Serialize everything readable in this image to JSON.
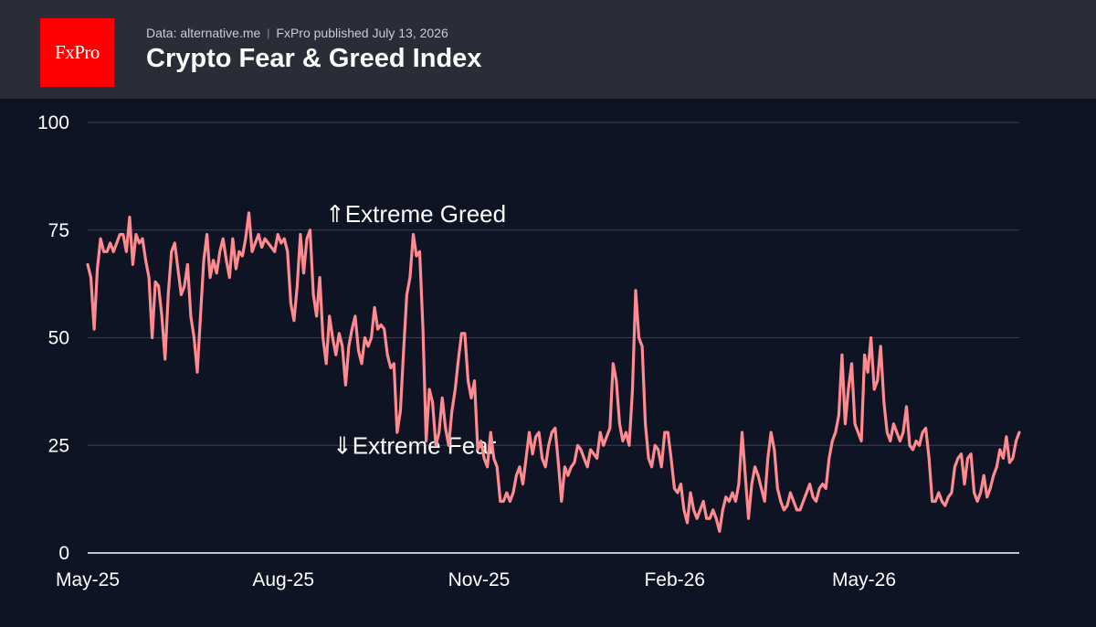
{
  "header": {
    "logo_text": "FxPro",
    "source": "Data: alternative.me",
    "publisher": "FxPro published July 13, 2026",
    "title": "Crypto Fear & Greed Index"
  },
  "colors": {
    "background": "#0e1424",
    "header_background": "#2a2d38",
    "logo_red": "#ff0000",
    "line": "#ff8a8f",
    "grid": "#3a3f4d"
  },
  "chart_data": {
    "type": "line",
    "title": "Crypto Fear & Greed Index",
    "xlabel": "",
    "ylabel": "",
    "ylim": [
      0,
      100
    ],
    "yticks": [
      0,
      25,
      50,
      75,
      100
    ],
    "xticks": [
      "May-25",
      "Aug-25",
      "Nov-25",
      "Feb-26",
      "May-26"
    ],
    "grid": true,
    "annotations": [
      {
        "text": "⇑Extreme Greed",
        "y": 75
      },
      {
        "text": "⇓Extreme Fear",
        "y": 25
      }
    ],
    "series": [
      {
        "x_start": "2025-05-01",
        "x_end": "2026-07-13",
        "values": [
          67,
          64,
          52,
          66,
          73,
          70,
          70,
          72,
          70,
          72,
          74,
          74,
          70,
          78,
          67,
          74,
          72,
          73,
          68,
          64,
          50,
          63,
          62,
          55,
          45,
          60,
          70,
          72,
          66,
          60,
          62,
          67,
          55,
          50,
          42,
          55,
          68,
          74,
          64,
          68,
          65,
          70,
          73,
          68,
          64,
          73,
          66,
          70,
          69,
          73,
          79,
          70,
          72,
          74,
          71,
          73,
          72,
          71,
          70,
          74,
          72,
          73,
          70,
          58,
          54,
          62,
          74,
          65,
          73,
          75,
          60,
          55,
          64,
          50,
          44,
          55,
          50,
          46,
          51,
          48,
          39,
          48,
          52,
          55,
          47,
          44,
          50,
          48,
          50,
          57,
          52,
          53,
          52,
          46,
          43,
          44,
          28,
          33,
          47,
          60,
          64,
          74,
          69,
          70,
          52,
          26,
          38,
          35,
          25,
          28,
          36,
          29,
          25,
          33,
          38,
          45,
          51,
          51,
          40,
          36,
          40,
          24,
          26,
          22,
          20,
          28,
          22,
          20,
          12,
          12,
          14,
          12,
          14,
          18,
          20,
          16,
          22,
          28,
          23,
          27,
          28,
          22,
          20,
          25,
          28,
          29,
          21,
          12,
          20,
          18,
          20,
          21,
          25,
          24,
          22,
          20,
          24,
          23,
          22,
          28,
          25,
          27,
          29,
          44,
          40,
          30,
          26,
          28,
          25,
          38,
          61,
          50,
          48,
          30,
          22,
          20,
          25,
          24,
          20,
          28,
          28,
          22,
          15,
          14,
          16,
          10,
          7,
          14,
          10,
          8,
          10,
          12,
          8,
          8,
          10,
          8,
          5,
          10,
          13,
          12,
          14,
          12,
          16,
          28,
          18,
          8,
          16,
          20,
          18,
          15,
          12,
          22,
          28,
          24,
          15,
          12,
          10,
          11,
          14,
          12,
          10,
          10,
          12,
          14,
          16,
          13,
          12,
          15,
          16,
          15,
          22,
          26,
          28,
          32,
          46,
          30,
          38,
          44,
          30,
          28,
          26,
          46,
          42,
          50,
          38,
          40,
          48,
          35,
          28,
          26,
          30,
          28,
          26,
          28,
          34,
          25,
          24,
          26,
          25,
          28,
          29,
          22,
          12,
          12,
          14,
          12,
          11,
          13,
          14,
          20,
          22,
          23,
          16,
          22,
          23,
          14,
          12,
          14,
          18,
          13,
          15,
          18,
          20,
          24,
          22,
          27,
          21,
          22,
          26,
          28
        ]
      }
    ]
  }
}
